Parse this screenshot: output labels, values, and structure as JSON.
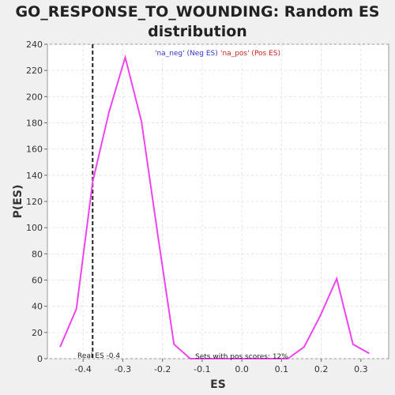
{
  "chart_data": {
    "type": "line",
    "title_line1": "GO_RESPONSE_TO_WOUNDING: Random ES",
    "title_line2": "distribution",
    "xlabel": "ES",
    "ylabel": "P(ES)",
    "xlim": [
      -0.49,
      0.37
    ],
    "ylim": [
      0,
      240
    ],
    "x_ticks": [
      -0.4,
      -0.3,
      -0.2,
      -0.1,
      0.0,
      0.1,
      0.2,
      0.3
    ],
    "x_tick_labels": [
      "-0.4",
      "-0.3",
      "-0.2",
      "-0.1",
      "0.0",
      "0.1",
      "0.2",
      "0.3"
    ],
    "y_ticks": [
      0,
      20,
      40,
      60,
      80,
      100,
      120,
      140,
      160,
      180,
      200,
      220,
      240
    ],
    "y_tick_labels": [
      "0",
      "20",
      "40",
      "60",
      "80",
      "100",
      "120",
      "140",
      "160",
      "180",
      "200",
      "220",
      "240"
    ],
    "grid": true,
    "legend_neg": "'na_neg' (Neg ES)",
    "legend_pos": "'na_pos' (Pos ES)",
    "legend_neg_color": "#3333cc",
    "legend_pos_color": "#cc2222",
    "series": [
      {
        "color": "#ee44ee",
        "x": [
          -0.458,
          -0.417,
          -0.376,
          -0.335,
          -0.294,
          -0.253,
          -0.212,
          -0.171,
          -0.13,
          -0.089,
          -0.048,
          -0.007,
          0.034,
          0.075,
          0.116,
          0.157,
          0.198,
          0.239,
          0.28,
          0.321
        ],
        "y": [
          9,
          38,
          135,
          188,
          230,
          181,
          95,
          11,
          0,
          0,
          0,
          0,
          0,
          0,
          0,
          9,
          33,
          61,
          11,
          4
        ]
      }
    ],
    "real_es": -0.376,
    "real_es_label": "Real ES -0.4",
    "sets_label": "Sets with pos scores: 12%"
  }
}
